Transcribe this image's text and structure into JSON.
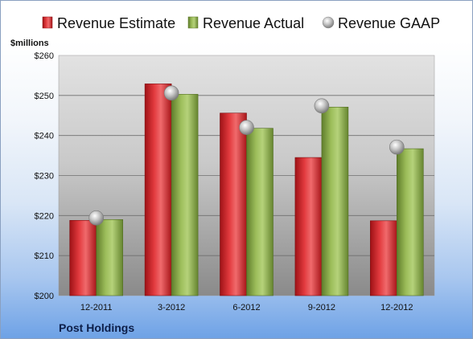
{
  "chart_data": {
    "type": "bar",
    "unit_label": "$millions",
    "company": "Post Holdings",
    "categories": [
      "12-2011",
      "3-2012",
      "6-2012",
      "9-2012",
      "12-2012"
    ],
    "series": [
      {
        "name": "Revenue Estimate",
        "kind": "bar",
        "color": "#d9262b",
        "values": [
          218.8,
          252.9,
          245.6,
          234.5,
          218.7
        ]
      },
      {
        "name": "Revenue Actual",
        "kind": "bar",
        "color": "#8fb04a",
        "values": [
          219.0,
          250.3,
          241.8,
          247.1,
          236.7
        ]
      },
      {
        "name": "Revenue GAAP",
        "kind": "marker",
        "color": "#b0b0b0",
        "values": [
          219.4,
          250.6,
          242.0,
          247.4,
          237.1
        ]
      }
    ],
    "ylim": [
      200,
      260
    ],
    "yticks": [
      200,
      210,
      220,
      230,
      240,
      250,
      260
    ],
    "ytick_labels": [
      "$200",
      "$210",
      "$220",
      "$230",
      "$240",
      "$250",
      "$260"
    ],
    "grid": true,
    "legend": "top"
  }
}
